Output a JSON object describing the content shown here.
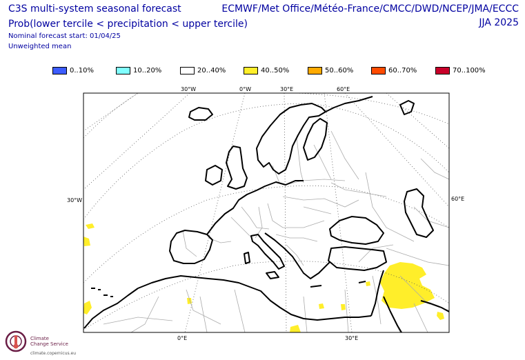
{
  "header": {
    "title_line1": "C3S multi-system seasonal forecast",
    "title_line2": "Prob(lower tercile < precipitation < upper tercile)",
    "start_note": "Nominal forecast start: 01/04/25",
    "mean_note": "Unweighted mean",
    "systems": "ECMWF/Met Office/Météo-France/CMCC/DWD/NCEP/JMA/ECCC",
    "season": "JJA 2025"
  },
  "legend": [
    {
      "label": "0..10%",
      "color": "#3c5cff"
    },
    {
      "label": "10..20%",
      "color": "#80ffff"
    },
    {
      "label": "20..40%",
      "color": "#ffffff"
    },
    {
      "label": "40..50%",
      "color": "#ffee2a"
    },
    {
      "label": "50..60%",
      "color": "#ffaa00"
    },
    {
      "label": "60..70%",
      "color": "#ff4b00"
    },
    {
      "label": "70..100%",
      "color": "#c8002a"
    }
  ],
  "map": {
    "top_labels": [
      "30°W",
      "0°W",
      "30°E",
      "60°E"
    ],
    "side_labels": [
      "30°W",
      "60°E"
    ],
    "bottom_labels": [
      "0°E",
      "30°E"
    ],
    "coast_color": "#000000",
    "border_color": "#aaaaaa",
    "fill_color": "#ffee2a"
  },
  "logo": {
    "line1": "Climate",
    "line2": "Change Service",
    "url": "climate.copernicus.eu"
  }
}
